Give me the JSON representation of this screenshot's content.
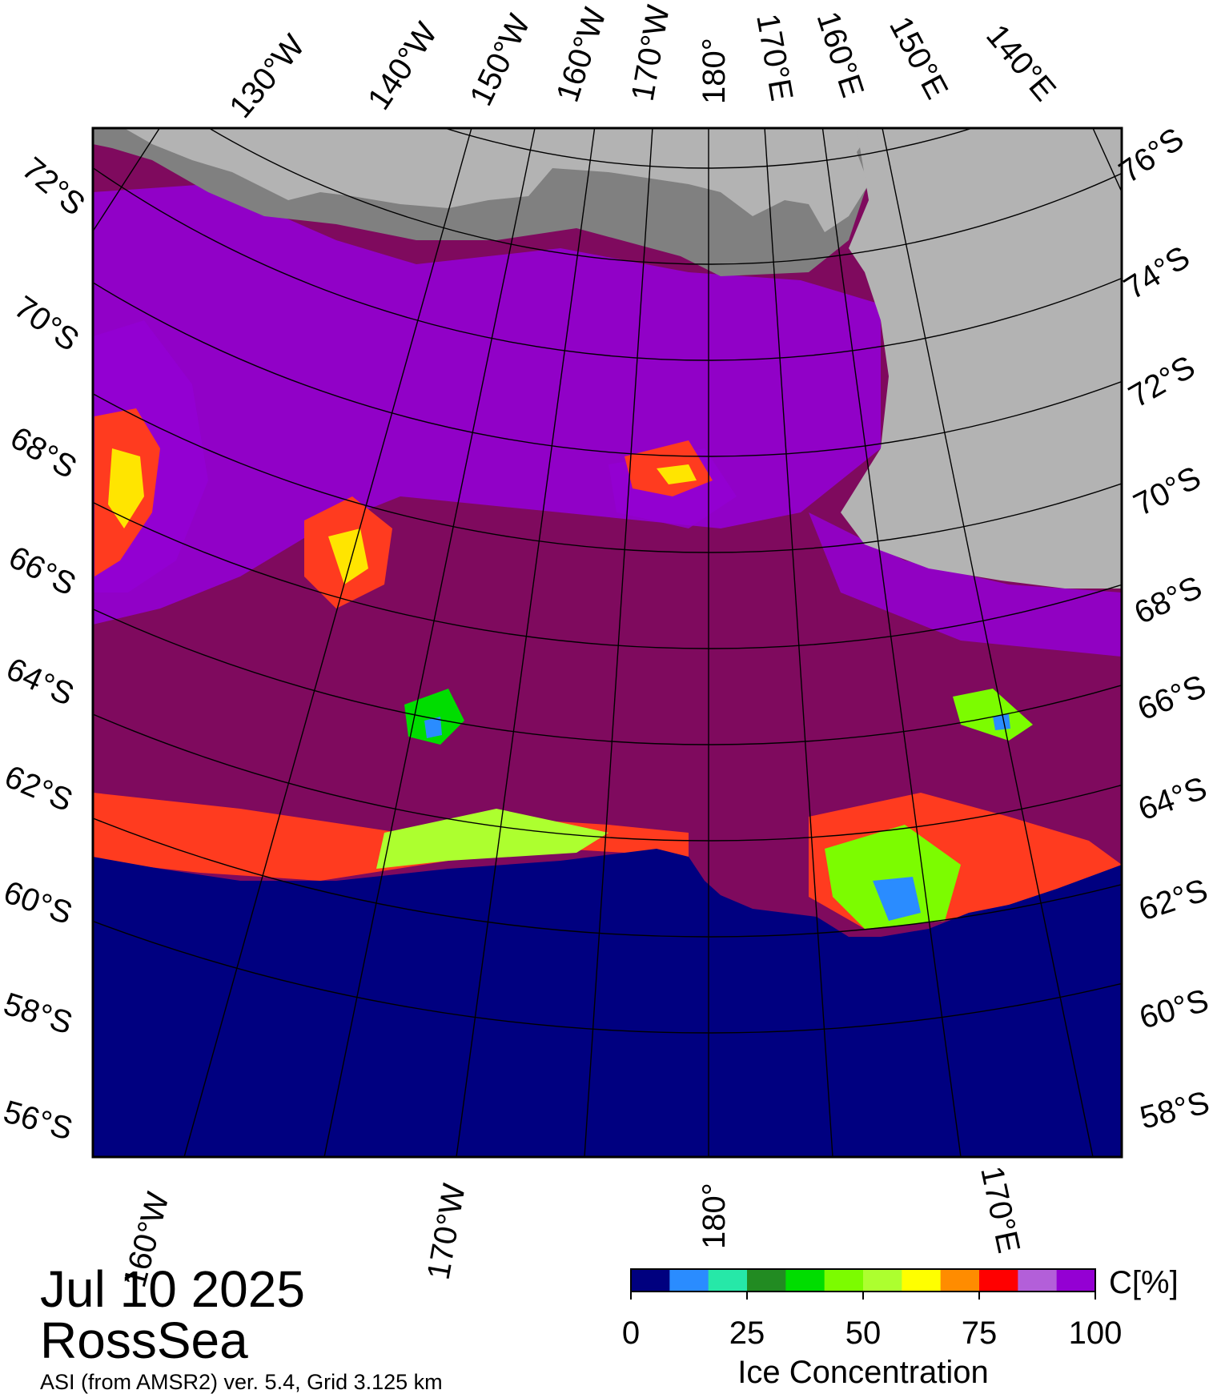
{
  "map": {
    "lon_labels_top": [
      "130°W",
      "140°W",
      "150°W",
      "160°W",
      "170°W",
      "180°",
      "170°E",
      "160°E",
      "150°E",
      "140°E"
    ],
    "lon_labels_bottom": [
      "160°W",
      "170°W",
      "180°",
      "170°E"
    ],
    "lat_labels_left": [
      "72°S",
      "70°S",
      "68°S",
      "66°S",
      "64°S",
      "62°S",
      "60°S",
      "58°S",
      "56°S"
    ],
    "lat_labels_right": [
      "76°S",
      "74°S",
      "72°S",
      "70°S",
      "68°S",
      "66°S",
      "64°S",
      "62°S",
      "60°S",
      "58°S"
    ],
    "colors": {
      "ocean": "#000080",
      "land": "#b3b3b3",
      "ice_shelf": "#808080",
      "ice_high": "#7f0a5e",
      "ice_mid": "#9400d3"
    }
  },
  "colorbar": {
    "unit_label": "C[%]",
    "title": "Ice Concentration",
    "ticks": [
      "0",
      "25",
      "50",
      "75",
      "100"
    ],
    "bins": [
      "#00007f",
      "#2a8cff",
      "#26e8a8",
      "#228b22",
      "#00dd00",
      "#7cfc00",
      "#adff2f",
      "#ffff00",
      "#ff8c00",
      "#ff0000",
      "#b35fd9",
      "#9400d3"
    ]
  },
  "caption": {
    "date": "Jul 10 2025",
    "region": "RossSea",
    "source": "ASI (from AMSR2) ver. 5.4,  Grid 3.125 km"
  }
}
